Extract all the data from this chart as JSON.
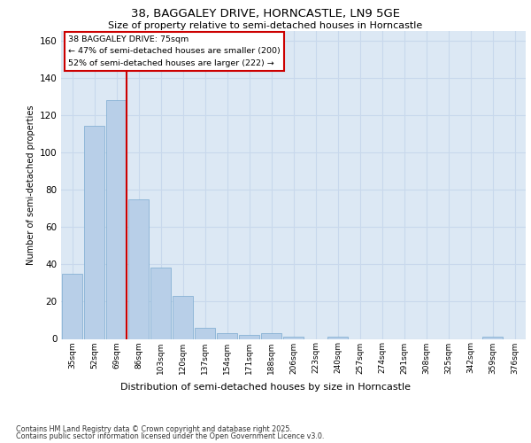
{
  "title1": "38, BAGGALEY DRIVE, HORNCASTLE, LN9 5GE",
  "title2": "Size of property relative to semi-detached houses in Horncastle",
  "xlabel": "Distribution of semi-detached houses by size in Horncastle",
  "ylabel": "Number of semi-detached properties",
  "categories": [
    "35sqm",
    "52sqm",
    "69sqm",
    "86sqm",
    "103sqm",
    "120sqm",
    "137sqm",
    "154sqm",
    "171sqm",
    "188sqm",
    "206sqm",
    "223sqm",
    "240sqm",
    "257sqm",
    "274sqm",
    "291sqm",
    "308sqm",
    "325sqm",
    "342sqm",
    "359sqm",
    "376sqm"
  ],
  "values": [
    35,
    114,
    128,
    75,
    38,
    23,
    6,
    3,
    2,
    3,
    1,
    0,
    1,
    0,
    0,
    0,
    0,
    0,
    0,
    1,
    0
  ],
  "bar_color": "#b8cfe8",
  "bar_edge_color": "#7aaad0",
  "vline_color": "#cc0000",
  "vline_bin_index": 2,
  "annotation_title": "38 BAGGALEY DRIVE: 75sqm",
  "annotation_line1": "← 47% of semi-detached houses are smaller (200)",
  "annotation_line2": "52% of semi-detached houses are larger (222) →",
  "grid_color": "#c8d8ec",
  "background_color": "#dce8f4",
  "ylim": [
    0,
    165
  ],
  "yticks": [
    0,
    20,
    40,
    60,
    80,
    100,
    120,
    140,
    160
  ],
  "footer1": "Contains HM Land Registry data © Crown copyright and database right 2025.",
  "footer2": "Contains public sector information licensed under the Open Government Licence v3.0."
}
